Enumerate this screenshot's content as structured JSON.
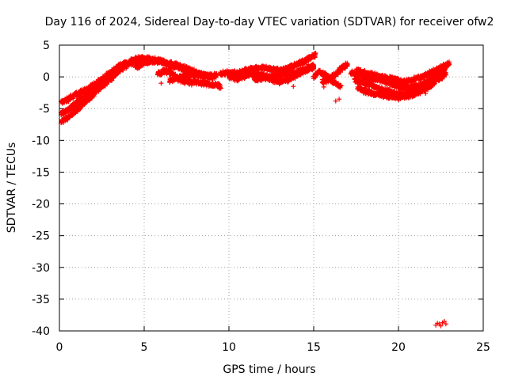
{
  "chart_data": {
    "type": "scatter",
    "title": "Day 116 of 2024, Sidereal Day-to-day VTEC variation (SDTVAR) for receiver ofw2",
    "xlabel": "GPS time / hours",
    "ylabel": "SDTVAR / TECUs",
    "xlim": [
      0,
      25
    ],
    "ylim": [
      -40,
      5
    ],
    "xticks": [
      0,
      5,
      10,
      15,
      20,
      25
    ],
    "yticks": [
      5,
      0,
      -5,
      -10,
      -15,
      -20,
      -25,
      -30,
      -35,
      -40
    ],
    "grid": true,
    "series": [
      {
        "name": "SDTVAR",
        "color": "#ff0000",
        "marker": "plus",
        "bands": [
          [
            [
              0.1,
              -7.0
            ],
            [
              0.5,
              -6.5
            ],
            [
              1.0,
              -5.2
            ],
            [
              1.5,
              -4.0
            ],
            [
              2.0,
              -2.8
            ],
            [
              2.5,
              -1.5
            ],
            [
              3.0,
              -0.4
            ],
            [
              3.5,
              1.0
            ],
            [
              3.8,
              2.0
            ]
          ],
          [
            [
              0.1,
              -5.8
            ],
            [
              0.6,
              -5.0
            ],
            [
              1.1,
              -3.8
            ],
            [
              1.6,
              -3.0
            ],
            [
              2.1,
              -1.8
            ],
            [
              2.6,
              -0.6
            ],
            [
              3.1,
              0.6
            ],
            [
              3.6,
              1.6
            ],
            [
              4.0,
              2.3
            ]
          ],
          [
            [
              0.1,
              -4.0
            ],
            [
              0.4,
              -3.7
            ],
            [
              0.8,
              -3.0
            ],
            [
              1.4,
              -2.3
            ],
            [
              1.9,
              -1.5
            ],
            [
              2.4,
              -0.6
            ],
            [
              2.9,
              0.4
            ],
            [
              3.4,
              1.4
            ],
            [
              3.9,
              2.3
            ]
          ],
          [
            [
              1.0,
              -4.5
            ],
            [
              1.5,
              -3.5
            ],
            [
              2.0,
              -2.2
            ],
            [
              2.5,
              -1.0
            ],
            [
              3.0,
              0.0
            ],
            [
              3.6,
              1.2
            ],
            [
              4.2,
              2.2
            ],
            [
              4.8,
              2.5
            ],
            [
              5.5,
              2.6
            ]
          ],
          [
            [
              4.5,
              1.5
            ],
            [
              5.0,
              2.2
            ],
            [
              5.5,
              2.5
            ],
            [
              6.0,
              2.4
            ],
            [
              6.5,
              1.8
            ],
            [
              7.0,
              1.5
            ],
            [
              7.5,
              1.0
            ],
            [
              8.0,
              0.6
            ],
            [
              8.5,
              0.2
            ],
            [
              9.0,
              0.3
            ]
          ],
          [
            [
              4.2,
              2.6
            ],
            [
              4.8,
              2.9
            ],
            [
              5.3,
              2.8
            ],
            [
              5.8,
              2.6
            ],
            [
              6.3,
              2.2
            ],
            [
              6.8,
              1.9
            ],
            [
              7.3,
              1.5
            ],
            [
              7.8,
              1.0
            ],
            [
              8.3,
              0.4
            ],
            [
              8.8,
              0.0
            ],
            [
              9.2,
              0.2
            ]
          ],
          [
            [
              5.8,
              0.5
            ],
            [
              6.2,
              0.9
            ],
            [
              6.6,
              0.7
            ],
            [
              7.0,
              -0.3
            ],
            [
              7.5,
              -0.8
            ],
            [
              8.0,
              -0.8
            ],
            [
              8.5,
              -1.0
            ],
            [
              9.0,
              -1.2
            ],
            [
              9.5,
              -1.5
            ]
          ],
          [
            [
              6.5,
              -0.5
            ],
            [
              7.0,
              -0.2
            ],
            [
              7.5,
              0.2
            ],
            [
              8.0,
              0.4
            ],
            [
              8.5,
              0.2
            ],
            [
              9.0,
              0.0
            ],
            [
              9.3,
              0.4
            ]
          ],
          [
            [
              9.5,
              0.4
            ],
            [
              10.0,
              0.8
            ],
            [
              10.5,
              0.5
            ],
            [
              11.0,
              1.0
            ],
            [
              11.5,
              1.3
            ],
            [
              12.0,
              1.5
            ],
            [
              12.5,
              1.2
            ],
            [
              13.0,
              1.0
            ],
            [
              13.5,
              1.3
            ],
            [
              14.0,
              2.0
            ],
            [
              14.5,
              2.5
            ],
            [
              14.8,
              3.0
            ],
            [
              15.1,
              3.5
            ]
          ],
          [
            [
              10.0,
              0.0
            ],
            [
              10.5,
              -0.3
            ],
            [
              11.0,
              0.2
            ],
            [
              11.5,
              0.5
            ],
            [
              12.0,
              0.3
            ],
            [
              12.5,
              -0.4
            ],
            [
              13.0,
              -0.8
            ],
            [
              13.5,
              -0.4
            ],
            [
              14.0,
              0.2
            ],
            [
              14.5,
              1.0
            ],
            [
              15.0,
              1.5
            ]
          ],
          [
            [
              11.5,
              -0.5
            ],
            [
              12.0,
              -0.2
            ],
            [
              12.5,
              0.0
            ],
            [
              13.0,
              0.3
            ],
            [
              13.5,
              0.5
            ],
            [
              14.0,
              0.8
            ],
            [
              14.5,
              1.2
            ],
            [
              15.0,
              1.8
            ]
          ],
          [
            [
              15.0,
              0.0
            ],
            [
              15.3,
              0.8
            ],
            [
              15.7,
              0.3
            ],
            [
              16.0,
              -0.5
            ],
            [
              16.3,
              -1.0
            ],
            [
              16.6,
              -1.5
            ]
          ],
          [
            [
              15.5,
              -0.8
            ],
            [
              15.8,
              -0.5
            ],
            [
              16.1,
              0.0
            ],
            [
              16.4,
              0.6
            ],
            [
              16.7,
              1.5
            ],
            [
              17.0,
              2.0
            ]
          ],
          [
            [
              17.2,
              0.6
            ],
            [
              17.6,
              0.4
            ],
            [
              18.0,
              0.0
            ],
            [
              18.5,
              -0.3
            ],
            [
              19.0,
              -0.5
            ],
            [
              19.5,
              -1.0
            ],
            [
              20.0,
              -1.6
            ],
            [
              20.5,
              -1.8
            ],
            [
              21.0,
              -1.5
            ],
            [
              21.5,
              -1.0
            ],
            [
              22.0,
              -0.3
            ],
            [
              22.5,
              0.5
            ],
            [
              22.8,
              1.6
            ]
          ],
          [
            [
              17.4,
              -0.5
            ],
            [
              17.9,
              -0.8
            ],
            [
              18.3,
              -1.2
            ],
            [
              18.8,
              -1.8
            ],
            [
              19.3,
              -2.2
            ],
            [
              19.8,
              -2.6
            ],
            [
              20.3,
              -2.8
            ],
            [
              20.8,
              -2.5
            ],
            [
              21.3,
              -2.0
            ],
            [
              21.8,
              -1.3
            ],
            [
              22.3,
              -0.5
            ],
            [
              22.8,
              0.5
            ]
          ],
          [
            [
              17.6,
              -1.8
            ],
            [
              18.0,
              -2.2
            ],
            [
              18.4,
              -2.6
            ],
            [
              18.9,
              -2.8
            ],
            [
              19.4,
              -3.0
            ],
            [
              20.0,
              -3.2
            ],
            [
              20.5,
              -3.0
            ],
            [
              21.0,
              -2.6
            ],
            [
              21.5,
              -2.0
            ],
            [
              22.0,
              -1.2
            ]
          ],
          [
            [
              18.2,
              0.2
            ],
            [
              18.7,
              0.0
            ],
            [
              19.2,
              -0.4
            ],
            [
              19.7,
              -0.6
            ],
            [
              20.2,
              -0.8
            ],
            [
              20.7,
              -0.6
            ],
            [
              21.2,
              -0.2
            ],
            [
              21.7,
              0.4
            ],
            [
              22.2,
              1.0
            ],
            [
              22.7,
              1.7
            ],
            [
              23.0,
              2.0
            ]
          ],
          [
            [
              17.5,
              1.0
            ],
            [
              18.0,
              0.6
            ],
            [
              18.5,
              0.3
            ],
            [
              19.0,
              0.0
            ],
            [
              19.5,
              -0.3
            ],
            [
              20.0,
              -0.5
            ]
          ]
        ],
        "isolated": [
          [
            16.5,
            -3.5
          ],
          [
            16.3,
            -3.8
          ],
          [
            7.8,
            -1.3
          ],
          [
            12.4,
            -0.6
          ],
          [
            13.8,
            -1.5
          ],
          [
            3.0,
            0.3
          ],
          [
            21.6,
            -2.6
          ],
          [
            6.0,
            -1.0
          ],
          [
            14.2,
            2.2
          ],
          [
            15.6,
            -1.6
          ]
        ],
        "outlier_cluster": [
          [
            22.2,
            -39.1
          ],
          [
            22.4,
            -38.9
          ],
          [
            22.6,
            -38.7
          ],
          [
            22.8,
            -38.9
          ],
          [
            22.5,
            -39.2
          ],
          [
            22.7,
            -38.5
          ],
          [
            22.3,
            -38.8
          ]
        ]
      }
    ]
  }
}
